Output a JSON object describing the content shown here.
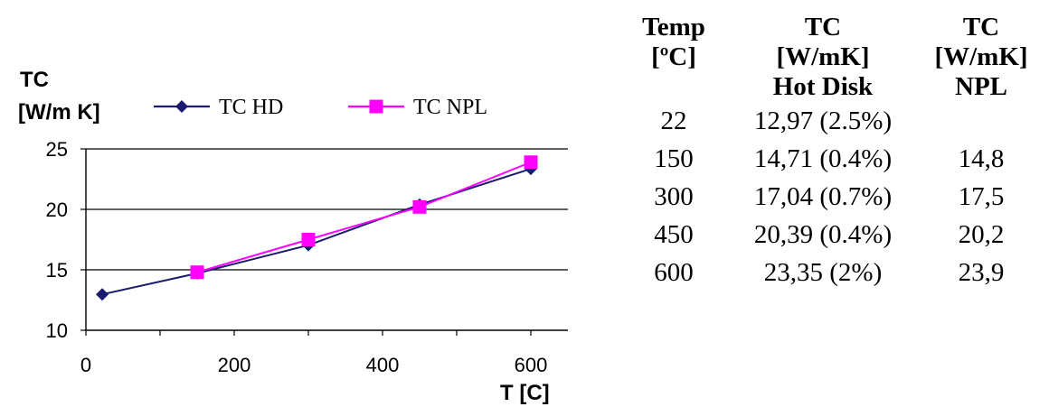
{
  "chart_data": {
    "type": "line",
    "ylabel_line1": "TC",
    "ylabel_line2": "[W/m K]",
    "xlabel": "T [C]",
    "xlim": [
      0,
      650
    ],
    "ylim": [
      10,
      25
    ],
    "xticks": [
      0,
      200,
      400,
      600
    ],
    "yticks": [
      10,
      15,
      20,
      25
    ],
    "grid": "horizontal",
    "legend_position": "top",
    "series": [
      {
        "name": "TC HD",
        "marker": "diamond",
        "color": "#1a1a6e",
        "x": [
          22,
          150,
          300,
          450,
          600
        ],
        "y": [
          12.97,
          14.71,
          17.04,
          20.39,
          23.35
        ]
      },
      {
        "name": "TC NPL",
        "marker": "square",
        "color": "#ff00ff",
        "x": [
          150,
          300,
          450,
          600
        ],
        "y": [
          14.8,
          17.5,
          20.2,
          23.9
        ]
      }
    ]
  },
  "table": {
    "headers": [
      [
        "Temp",
        "[ºC]"
      ],
      [
        "TC",
        "[W/mK]",
        "Hot Disk"
      ],
      [
        "TC",
        "[W/mK]",
        "NPL"
      ]
    ],
    "rows": [
      [
        "22",
        "12,97 (2.5%)",
        ""
      ],
      [
        "150",
        "14,71 (0.4%)",
        "14,8"
      ],
      [
        "300",
        "17,04 (0.7%)",
        "17,5"
      ],
      [
        "450",
        "20,39 (0.4%)",
        "20,2"
      ],
      [
        "600",
        "23,35 (2%)",
        "23,9"
      ]
    ]
  }
}
